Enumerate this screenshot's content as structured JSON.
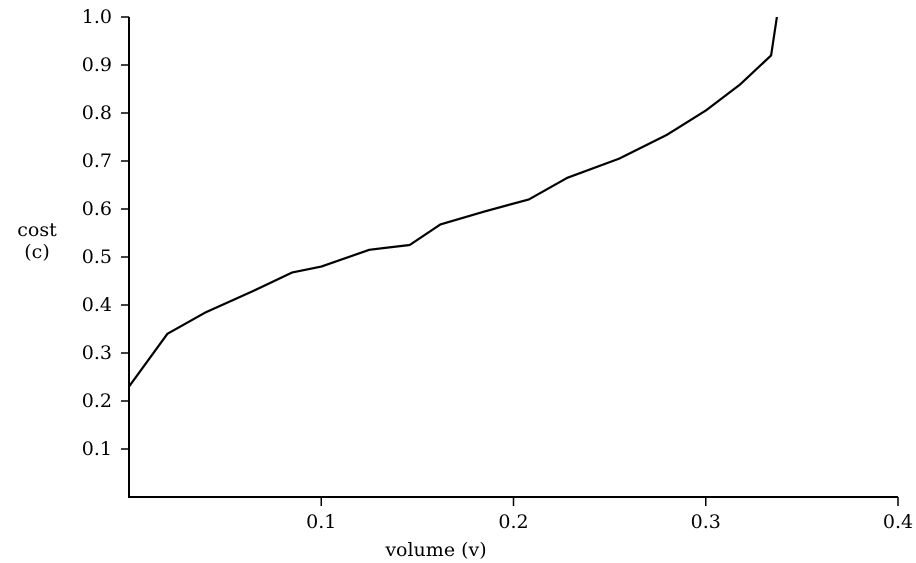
{
  "chart_data": {
    "type": "line",
    "title": "",
    "xlabel": "volume (v)",
    "ylabel": [
      "cost",
      "(c)"
    ],
    "xlim": [
      0,
      0.4
    ],
    "ylim": [
      0,
      1.0
    ],
    "grid": false,
    "legend": "none",
    "x_ticks": [
      0.1,
      0.2,
      0.3,
      0.4
    ],
    "x_tick_labels": [
      "0.1",
      "0.2",
      "0.3",
      "0.4"
    ],
    "y_ticks": [
      0.1,
      0.2,
      0.3,
      0.4,
      0.5,
      0.6,
      0.7,
      0.8,
      0.9,
      1.0
    ],
    "y_tick_labels": [
      "0.1",
      "0.2",
      "0.3",
      "0.4",
      "0.5",
      "0.6",
      "0.7",
      "0.8",
      "0.9",
      "1.0"
    ],
    "series": [
      {
        "color": "#000000",
        "x": [
          0.0,
          0.02,
          0.04,
          0.065,
          0.085,
          0.1,
          0.125,
          0.146,
          0.162,
          0.185,
          0.208,
          0.228,
          0.255,
          0.28,
          0.3,
          0.318,
          0.334,
          0.337
        ],
        "y": [
          0.23,
          0.34,
          0.385,
          0.43,
          0.468,
          0.48,
          0.515,
          0.525,
          0.568,
          0.595,
          0.62,
          0.665,
          0.705,
          0.755,
          0.805,
          0.86,
          0.92,
          1.0
        ]
      }
    ]
  }
}
